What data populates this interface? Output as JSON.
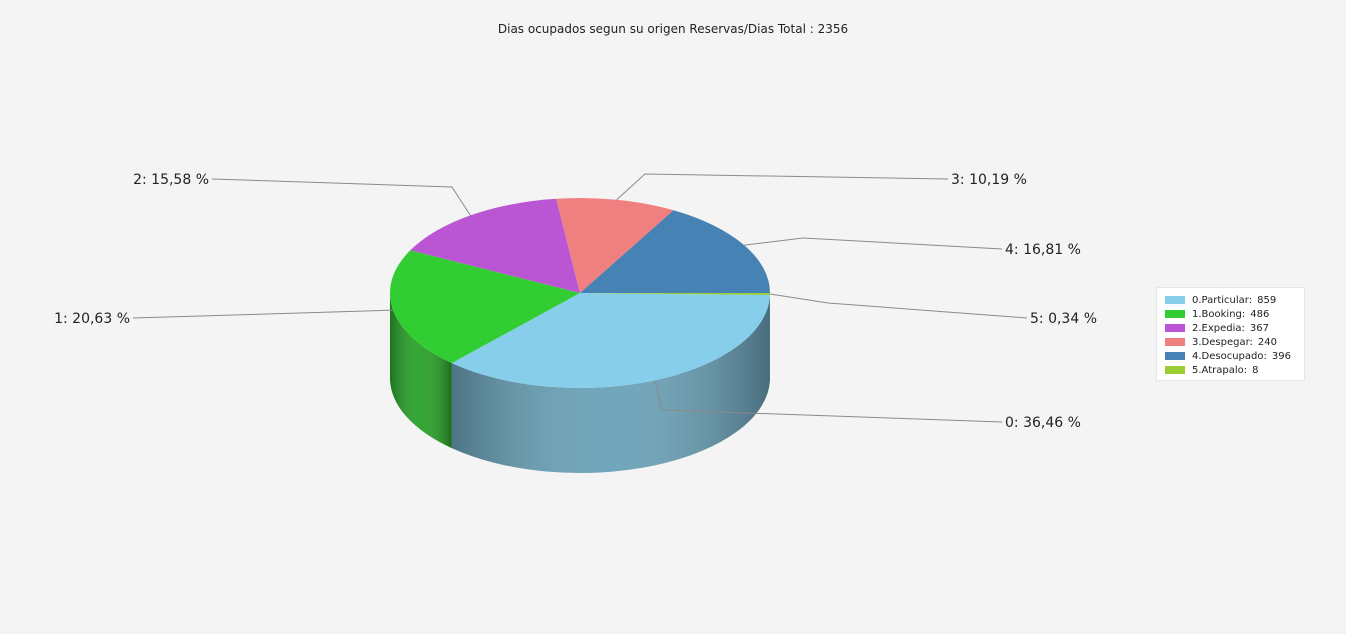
{
  "chart_data": {
    "type": "pie",
    "title": "Dias ocupados segun su origen Reservas/Dias Total : 2356",
    "slices": [
      {
        "index": "0",
        "name": "0.Particular:",
        "value": 859,
        "percent_label": "36,46 %",
        "color": "#87ceeb"
      },
      {
        "index": "1",
        "name": "1.Booking:",
        "value": 486,
        "percent_label": "20,63 %",
        "color": "#32cd32"
      },
      {
        "index": "2",
        "name": "2.Expedia:",
        "value": 367,
        "percent_label": "15,58 %",
        "color": "#ba55d3"
      },
      {
        "index": "3",
        "name": "3.Despegar:",
        "value": 240,
        "percent_label": "10,19 %",
        "color": "#f08080"
      },
      {
        "index": "4",
        "name": "4.Desocupado:",
        "value": 396,
        "percent_label": "16,81 %",
        "color": "#4682b4"
      },
      {
        "index": "5",
        "name": "5.Atrapalo:",
        "value": 8,
        "percent_label": "0,34 %",
        "color": "#9acd32"
      }
    ],
    "legend_position": "right",
    "style": "3d"
  }
}
